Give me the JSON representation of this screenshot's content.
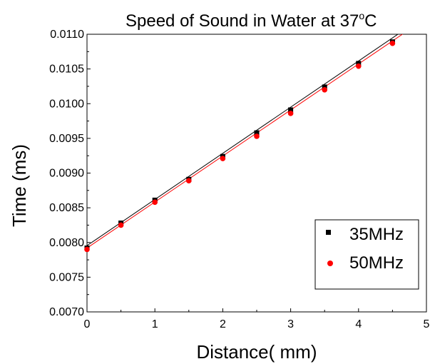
{
  "chart_data": {
    "type": "scatter",
    "title_main": "Speed of Sound in Water at 37",
    "title_degree": "o",
    "title_unit": "C",
    "xlabel": "Distance( mm)",
    "ylabel": "Time (ms)",
    "xlim": [
      0,
      5
    ],
    "ylim": [
      0.007,
      0.011
    ],
    "x_ticks": [
      "0",
      "1",
      "2",
      "3",
      "4",
      "5"
    ],
    "y_ticks": [
      "0.0070",
      "0.0075",
      "0.0080",
      "0.0085",
      "0.0090",
      "0.0095",
      "0.0100",
      "0.0105",
      "0.0110"
    ],
    "legend_position": "bottom-right",
    "series": [
      {
        "name": "35MHz",
        "marker": "square",
        "color": "#000000",
        "x": [
          0,
          0.5,
          1,
          1.5,
          2,
          2.5,
          3,
          3.5,
          4,
          4.5
        ],
        "y": [
          0.00792,
          0.00828,
          0.00861,
          0.00891,
          0.00924,
          0.00958,
          0.00991,
          0.01024,
          0.01058,
          0.01089
        ],
        "fit": {
          "intercept": 0.007955,
          "slope": 0.000665
        }
      },
      {
        "name": "50MHz",
        "marker": "circle",
        "color": "#ff0000",
        "x": [
          0,
          0.5,
          1,
          1.5,
          2,
          2.5,
          3,
          3.5,
          4,
          4.5
        ],
        "y": [
          0.0079,
          0.00825,
          0.00858,
          0.00889,
          0.00921,
          0.00953,
          0.00986,
          0.0102,
          0.01054,
          0.01087
        ],
        "fit": {
          "intercept": 0.00792,
          "slope": 0.000663
        }
      }
    ]
  }
}
